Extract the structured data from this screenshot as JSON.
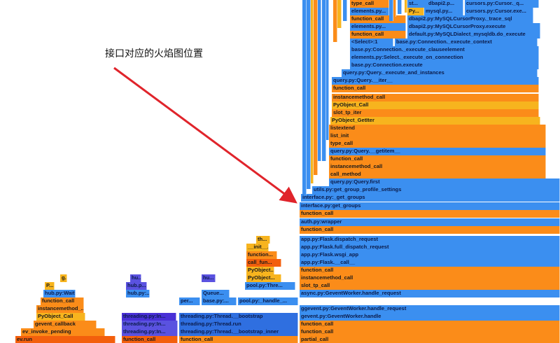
{
  "annotation": {
    "label": "接口对应的火焰图位置",
    "color": "#e0242b"
  },
  "colors": {
    "orange": "#fb8c19",
    "dark_orange": "#f35f0c",
    "light_orange": "#fda23a",
    "yellow": "#f7b41e",
    "pale_yellow": "#fcd34a",
    "blue": "#3b8ff0",
    "med_blue": "#2f6fe0",
    "purple": "#5a52e0",
    "dark_purple": "#4930d6"
  },
  "flame_frames": [
    {
      "name": "ev.run",
      "color": "dark_orange"
    },
    {
      "name": "ev_invoke_pending",
      "color": "orange"
    },
    {
      "name": "gevent_callback",
      "color": "orange"
    },
    {
      "name": "PyObject_Call",
      "color": "yellow"
    },
    {
      "name": "instancemethod_...",
      "color": "orange"
    },
    {
      "name": "function_call",
      "color": "orange"
    },
    {
      "name": "hub.py:Waite...",
      "color": "blue"
    },
    {
      "name": "P...",
      "color": "yellow"
    },
    {
      "name": "g...",
      "color": "yellow"
    },
    {
      "name": "function_call",
      "color": "dark_orange"
    },
    {
      "name": "threading.py:In...",
      "color": "purple"
    },
    {
      "name": "threading.py:In...",
      "color": "purple"
    },
    {
      "name": "threading.py:In...",
      "color": "dark_purple"
    },
    {
      "name": "hub.py:...",
      "color": "blue"
    },
    {
      "name": "hub.p...",
      "color": "purple"
    },
    {
      "name": "hu...",
      "color": "purple"
    },
    {
      "name": "function_call",
      "color": "orange"
    },
    {
      "name": "threading.py:Thread.run",
      "color": "med_blue"
    },
    {
      "name": "threading.py:Thread.__bootstrap_inner",
      "color": "med_blue"
    },
    {
      "name": "threading.py:Thread.__bootstrap",
      "color": "med_blue"
    },
    {
      "name": "per...",
      "color": "blue"
    },
    {
      "name": "base.py:...",
      "color": "blue"
    },
    {
      "name": "Queue...",
      "color": "blue"
    },
    {
      "name": "hu...",
      "color": "purple"
    },
    {
      "name": "pool.py:_handle_...",
      "color": "blue"
    },
    {
      "name": "pool.py:Thre...",
      "color": "blue"
    },
    {
      "name": "PyObject...",
      "color": "yellow"
    },
    {
      "name": "PyObject...",
      "color": "yellow"
    },
    {
      "name": "call_fun...",
      "color": "dark_orange"
    },
    {
      "name": "function...",
      "color": "orange"
    },
    {
      "name": "__init__...",
      "color": "yellow"
    },
    {
      "name": "th...",
      "color": "yellow"
    },
    {
      "name": "partial_call",
      "color": "orange"
    },
    {
      "name": "function_call",
      "color": "orange"
    },
    {
      "name": "gevent.py:GeventWorker.handle",
      "color": "blue"
    },
    {
      "name": "ggevent.py:GeventWorker.handle_request",
      "color": "blue"
    },
    {
      "name": "function_call",
      "color": "orange"
    },
    {
      "name": "async.py:GeventWorker.handle_request",
      "color": "blue"
    },
    {
      "name": "slot_tp_call",
      "color": "orange"
    },
    {
      "name": "instancemethod_call",
      "color": "orange"
    },
    {
      "name": "function_call",
      "color": "orange"
    },
    {
      "name": "app.py:Flask.__call__",
      "color": "blue"
    },
    {
      "name": "app.py:Flask.wsgi_app",
      "color": "blue"
    },
    {
      "name": "app.py:Flask.full_dispatch_request",
      "color": "blue"
    },
    {
      "name": "app.py:Flask.dispatch_request",
      "color": "blue"
    },
    {
      "name": "function_call",
      "color": "orange"
    },
    {
      "name": "auth.py:wrapper",
      "color": "blue"
    },
    {
      "name": "function_call",
      "color": "orange"
    },
    {
      "name": "interface.py:get_groups",
      "color": "blue"
    },
    {
      "name": "interface.py:_get_groups",
      "color": "blue"
    },
    {
      "name": "utils.py:get_group_profile_settings",
      "color": "blue"
    },
    {
      "name": "query.py:Query.first",
      "color": "blue"
    },
    {
      "name": "call_method",
      "color": "orange"
    },
    {
      "name": "instancemethod_call",
      "color": "orange"
    },
    {
      "name": "function_call",
      "color": "orange"
    },
    {
      "name": "query.py:Query.__getitem__",
      "color": "blue"
    },
    {
      "name": "type_call",
      "color": "orange"
    },
    {
      "name": "list_init",
      "color": "orange"
    },
    {
      "name": "listextend",
      "color": "orange"
    },
    {
      "name": "PyObject_GetIter",
      "color": "yellow"
    },
    {
      "name": "slot_tp_iter",
      "color": "orange"
    },
    {
      "name": "PyObject_Call",
      "color": "yellow"
    },
    {
      "name": "instancemethod_call",
      "color": "orange"
    },
    {
      "name": "function_call",
      "color": "orange"
    },
    {
      "name": "query.py:Query.__iter__",
      "color": "blue"
    },
    {
      "name": "query.py:Query._execute_and_instances",
      "color": "blue"
    },
    {
      "name": "base.py:Connection.execute",
      "color": "blue"
    },
    {
      "name": "elements.py:Select._execute_on_connection",
      "color": "blue"
    },
    {
      "name": "base.py:Connection._execute_clauseelement",
      "color": "blue"
    },
    {
      "name": "<Select>:1",
      "color": "blue"
    },
    {
      "name": "base.py:Connection._execute_context",
      "color": "blue"
    },
    {
      "name": "function_call",
      "color": "orange"
    },
    {
      "name": "default.py:MySQLDialect_mysqldb.do_execute",
      "color": "blue"
    },
    {
      "name": "elements.py...",
      "color": "blue"
    },
    {
      "name": "dbapi2.py:MySQLCursorProxy.execute",
      "color": "blue"
    },
    {
      "name": "function_call",
      "color": "orange"
    },
    {
      "name": "dbapi2.py:MySQLCursorProxy._trace_sql",
      "color": "blue"
    },
    {
      "name": "elements.py...",
      "color": "blue"
    },
    {
      "name": "Py...",
      "color": "yellow"
    },
    {
      "name": "mysql.py...",
      "color": "blue"
    },
    {
      "name": "cursors.py:Cursor.exe...",
      "color": "blue"
    },
    {
      "name": "type_call",
      "color": "orange"
    },
    {
      "name": "st...",
      "color": "blue"
    },
    {
      "name": "dbapi2.p...",
      "color": "blue"
    },
    {
      "name": "cursors.py:Cursor._q...",
      "color": "blue"
    },
    {
      "name": "",
      "color": "blue"
    },
    {
      "name": "",
      "color": "blue"
    },
    {
      "name": "",
      "color": "yellow"
    },
    {
      "name": "",
      "color": "orange"
    },
    {
      "name": "",
      "color": "blue"
    },
    {
      "name": "",
      "color": "blue"
    },
    {
      "name": "",
      "color": "blue"
    },
    {
      "name": "",
      "color": "orange"
    },
    {
      "name": "",
      "color": "yellow"
    },
    {
      "name": "",
      "color": "blue"
    },
    {
      "name": "",
      "color": "blue"
    },
    {
      "name": "",
      "color": "orange"
    },
    {
      "name": "",
      "color": "blue"
    },
    {
      "name": "",
      "color": "yellow"
    }
  ]
}
